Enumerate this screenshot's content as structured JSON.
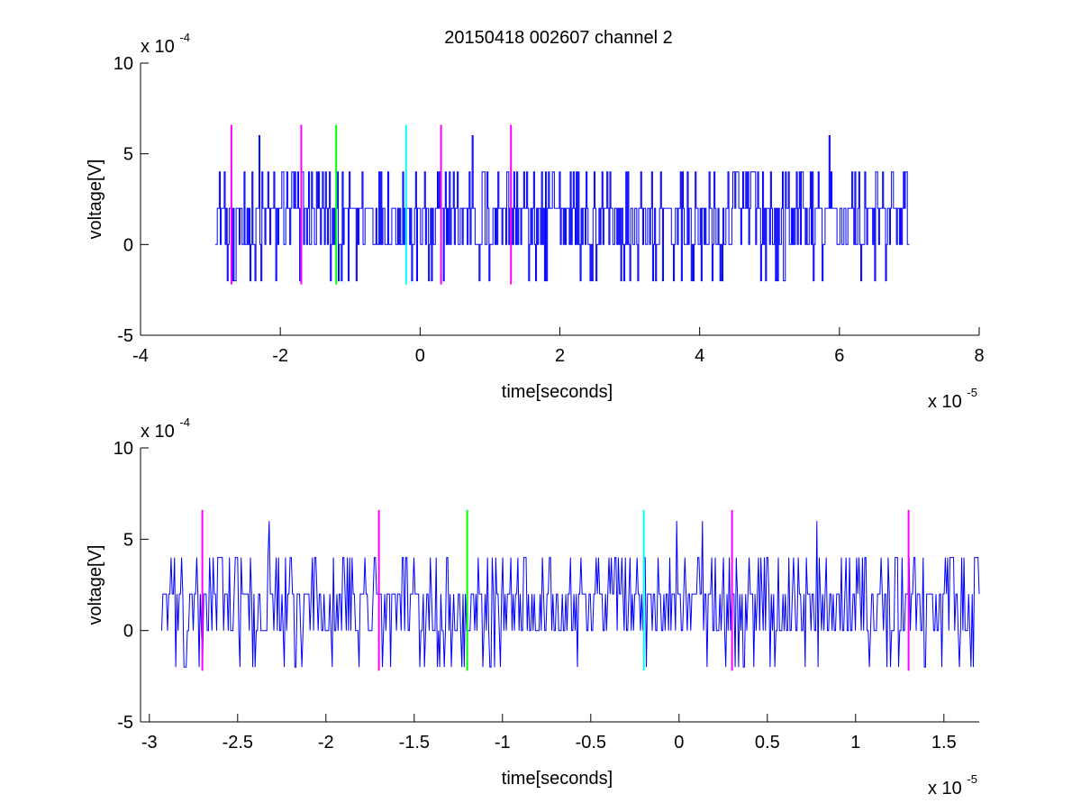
{
  "figure": {
    "title": "20150418 002607 channel 2"
  },
  "chart_data": [
    {
      "type": "line",
      "title": "20150418 002607 channel 2",
      "xlabel": "time[seconds]",
      "ylabel": "voltage[V]",
      "x_multiplier": "x 10",
      "x_multiplier_exp": "-5",
      "y_multiplier": "x 10",
      "y_multiplier_exp": "-4",
      "xlim": [
        -4,
        8
      ],
      "ylim": [
        -5,
        10
      ],
      "xticks": [
        -4,
        -2,
        0,
        2,
        4,
        6,
        8
      ],
      "xtick_labels": [
        "-4",
        "-2",
        "0",
        "2",
        "4",
        "6",
        "8"
      ],
      "yticks": [
        -5,
        0,
        5,
        10
      ],
      "ytick_labels": [
        "-5",
        "0",
        "5",
        "10"
      ],
      "grid": false,
      "series": [
        {
          "color": "#0000ff",
          "style": "noise-signal",
          "x_range": [
            -2.93,
            7.0
          ],
          "baseline_levels": [
            0,
            2,
            4
          ],
          "min": -2,
          "max": 6,
          "peaks": [
            {
              "x": -2.3,
              "y": 6
            },
            {
              "x": 0.75,
              "y": 6
            },
            {
              "x": 5.85,
              "y": 6
            }
          ]
        }
      ],
      "markers": [
        {
          "x": -2.7,
          "y_range": [
            -2.2,
            6.6
          ],
          "color": "#ff00ff"
        },
        {
          "x": -1.7,
          "y_range": [
            -2.2,
            6.6
          ],
          "color": "#ff00ff"
        },
        {
          "x": -1.2,
          "y_range": [
            -2.2,
            6.6
          ],
          "color": "#00ff00"
        },
        {
          "x": -0.2,
          "y_range": [
            -2.2,
            6.6
          ],
          "color": "#00ffff"
        },
        {
          "x": 0.3,
          "y_range": [
            -2.2,
            6.6
          ],
          "color": "#ff00ff"
        },
        {
          "x": 1.3,
          "y_range": [
            -2.2,
            6.6
          ],
          "color": "#ff00ff"
        }
      ]
    },
    {
      "type": "line",
      "xlabel": "time[seconds]",
      "ylabel": "voltage[V]",
      "x_multiplier": "x 10",
      "x_multiplier_exp": "-5",
      "y_multiplier": "x 10",
      "y_multiplier_exp": "-4",
      "xlim": [
        -3.05,
        1.7
      ],
      "ylim": [
        -5,
        10
      ],
      "xticks": [
        -3,
        -2.5,
        -2,
        -1.5,
        -1,
        -0.5,
        0,
        0.5,
        1,
        1.5
      ],
      "xtick_labels": [
        "-3",
        "-2.5",
        "-2",
        "-1.5",
        "-1",
        "-0.5",
        "0",
        "0.5",
        "1",
        "1.5"
      ],
      "yticks": [
        -5,
        0,
        5,
        10
      ],
      "ytick_labels": [
        "-5",
        "0",
        "5",
        "10"
      ],
      "grid": false,
      "series": [
        {
          "color": "#0000ff",
          "style": "noise-signal",
          "x_range": [
            -2.93,
            1.7
          ],
          "baseline_levels": [
            0,
            2,
            4
          ],
          "min": -2,
          "max": 6,
          "peaks": [
            {
              "x": -2.32,
              "y": 6
            },
            {
              "x": 0.13,
              "y": 6
            },
            {
              "x": 0.78,
              "y": 6
            },
            {
              "x": -0.01,
              "y": 6
            }
          ]
        }
      ],
      "markers": [
        {
          "x": -2.7,
          "y_range": [
            -2.2,
            6.6
          ],
          "color": "#ff00ff"
        },
        {
          "x": -1.7,
          "y_range": [
            -2.2,
            6.6
          ],
          "color": "#ff00ff"
        },
        {
          "x": -1.2,
          "y_range": [
            -2.2,
            6.6
          ],
          "color": "#00ff00"
        },
        {
          "x": -0.2,
          "y_range": [
            -2.2,
            6.6
          ],
          "color": "#00ffff"
        },
        {
          "x": 0.3,
          "y_range": [
            -2.2,
            6.6
          ],
          "color": "#ff00ff"
        },
        {
          "x": 1.3,
          "y_range": [
            -2.2,
            6.6
          ],
          "color": "#ff00ff"
        }
      ]
    }
  ]
}
